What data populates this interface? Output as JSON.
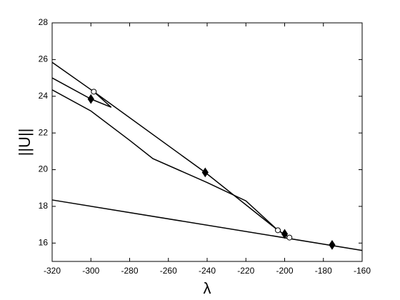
{
  "chart_data": {
    "type": "line",
    "xlabel": "λ",
    "ylabel": "||U||",
    "xlim": [
      -320,
      -160
    ],
    "ylim": [
      15,
      28
    ],
    "xticks": [
      -320,
      -300,
      -280,
      -260,
      -240,
      -220,
      -200,
      -180,
      -160
    ],
    "yticks": [
      16,
      18,
      20,
      22,
      24,
      26,
      28
    ],
    "series": [
      {
        "color": "#000000",
        "x": [
          -320,
          -298.5,
          -241,
          -203.5,
          -197.5
        ],
        "values": [
          25.85,
          24.25,
          19.85,
          16.7,
          16.3
        ]
      },
      {
        "color": "#000000",
        "x": [
          -320,
          -300,
          -289.5,
          -298.5
        ],
        "values": [
          25.0,
          23.85,
          23.4,
          24.25
        ]
      },
      {
        "color": "#000000",
        "x": [
          -320,
          -300,
          -280,
          -268,
          -240,
          -220,
          -203.5,
          -197.5
        ],
        "values": [
          24.35,
          23.2,
          21.6,
          20.6,
          19.3,
          18.3,
          16.7,
          16.3
        ]
      },
      {
        "color": "#000000",
        "x": [
          -320,
          -160
        ],
        "values": [
          18.35,
          15.6
        ]
      }
    ],
    "markers": [
      {
        "marker": "circle",
        "color": "#000000",
        "x": [
          -298.5,
          -203.5,
          -197.5
        ],
        "values": [
          24.25,
          16.7,
          16.3
        ]
      },
      {
        "marker": "diamond",
        "color": "#000000",
        "x": [
          -300,
          -241,
          -200,
          -175.5
        ],
        "values": [
          23.85,
          19.85,
          16.5,
          15.9
        ]
      }
    ]
  }
}
